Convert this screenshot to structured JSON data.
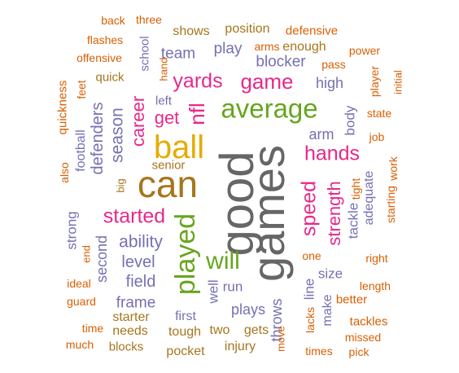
{
  "palette": {
    "orange": "#D95F02",
    "purple": "#7570B3",
    "pink": "#E7298A",
    "green": "#66A61E",
    "gold": "#E6AB02",
    "brown": "#A6761D",
    "gray": "#666666"
  },
  "words": [
    {
      "text": "good",
      "color": "gray"
    },
    {
      "text": "games",
      "color": "gray"
    },
    {
      "text": "can",
      "color": "brown"
    },
    {
      "text": "ball",
      "color": "gold"
    },
    {
      "text": "average",
      "color": "green"
    },
    {
      "text": "played",
      "color": "green"
    },
    {
      "text": "will",
      "color": "green"
    },
    {
      "text": "game",
      "color": "pink"
    },
    {
      "text": "yards",
      "color": "pink"
    },
    {
      "text": "nfl",
      "color": "pink"
    },
    {
      "text": "started",
      "color": "pink"
    },
    {
      "text": "hands",
      "color": "pink"
    },
    {
      "text": "speed",
      "color": "pink"
    },
    {
      "text": "strength",
      "color": "pink"
    },
    {
      "text": "get",
      "color": "pink"
    },
    {
      "text": "career",
      "color": "pink"
    },
    {
      "text": "season",
      "color": "purple"
    },
    {
      "text": "defenders",
      "color": "purple"
    },
    {
      "text": "football",
      "color": "purple"
    },
    {
      "text": "ability",
      "color": "purple"
    },
    {
      "text": "level",
      "color": "purple"
    },
    {
      "text": "field",
      "color": "purple"
    },
    {
      "text": "frame",
      "color": "purple"
    },
    {
      "text": "second",
      "color": "purple"
    },
    {
      "text": "strong",
      "color": "purple"
    },
    {
      "text": "team",
      "color": "purple"
    },
    {
      "text": "play",
      "color": "purple"
    },
    {
      "text": "blocker",
      "color": "purple"
    },
    {
      "text": "high",
      "color": "purple"
    },
    {
      "text": "arm",
      "color": "purple"
    },
    {
      "text": "body",
      "color": "purple"
    },
    {
      "text": "plays",
      "color": "purple"
    },
    {
      "text": "well",
      "color": "purple"
    },
    {
      "text": "run",
      "color": "purple"
    },
    {
      "text": "first",
      "color": "purple"
    },
    {
      "text": "size",
      "color": "purple"
    },
    {
      "text": "line",
      "color": "purple"
    },
    {
      "text": "make",
      "color": "purple"
    },
    {
      "text": "throws",
      "color": "purple"
    },
    {
      "text": "tackle",
      "color": "purple"
    },
    {
      "text": "adequate",
      "color": "purple"
    },
    {
      "text": "school",
      "color": "purple"
    },
    {
      "text": "left",
      "color": "purple"
    },
    {
      "text": "quick",
      "color": "brown"
    },
    {
      "text": "senior",
      "color": "brown"
    },
    {
      "text": "big",
      "color": "brown"
    },
    {
      "text": "shows",
      "color": "brown"
    },
    {
      "text": "position",
      "color": "brown"
    },
    {
      "text": "enough",
      "color": "brown"
    },
    {
      "text": "tough",
      "color": "brown"
    },
    {
      "text": "two",
      "color": "brown"
    },
    {
      "text": "gets",
      "color": "brown"
    },
    {
      "text": "injury",
      "color": "brown"
    },
    {
      "text": "pocket",
      "color": "brown"
    },
    {
      "text": "starter",
      "color": "brown"
    },
    {
      "text": "needs",
      "color": "brown"
    },
    {
      "text": "blocks",
      "color": "brown"
    },
    {
      "text": "back",
      "color": "orange"
    },
    {
      "text": "three",
      "color": "orange"
    },
    {
      "text": "flashes",
      "color": "orange"
    },
    {
      "text": "offensive",
      "color": "orange"
    },
    {
      "text": "defensive",
      "color": "orange"
    },
    {
      "text": "arms",
      "color": "orange"
    },
    {
      "text": "power",
      "color": "orange"
    },
    {
      "text": "pass",
      "color": "orange"
    },
    {
      "text": "hand",
      "color": "orange"
    },
    {
      "text": "player",
      "color": "orange"
    },
    {
      "text": "initial",
      "color": "orange"
    },
    {
      "text": "state",
      "color": "orange"
    },
    {
      "text": "job",
      "color": "orange"
    },
    {
      "text": "work",
      "color": "orange"
    },
    {
      "text": "starting",
      "color": "orange"
    },
    {
      "text": "tight",
      "color": "orange"
    },
    {
      "text": "right",
      "color": "orange"
    },
    {
      "text": "length",
      "color": "orange"
    },
    {
      "text": "better",
      "color": "orange"
    },
    {
      "text": "tackles",
      "color": "orange"
    },
    {
      "text": "missed",
      "color": "orange"
    },
    {
      "text": "pick",
      "color": "orange"
    },
    {
      "text": "times",
      "color": "orange"
    },
    {
      "text": "move",
      "color": "orange"
    },
    {
      "text": "lacks",
      "color": "orange"
    },
    {
      "text": "one",
      "color": "orange"
    },
    {
      "text": "feet",
      "color": "orange"
    },
    {
      "text": "quickness",
      "color": "orange"
    },
    {
      "text": "also",
      "color": "orange"
    },
    {
      "text": "end",
      "color": "orange"
    },
    {
      "text": "ideal",
      "color": "orange"
    },
    {
      "text": "guard",
      "color": "orange"
    },
    {
      "text": "time",
      "color": "orange"
    },
    {
      "text": "much",
      "color": "orange"
    }
  ]
}
